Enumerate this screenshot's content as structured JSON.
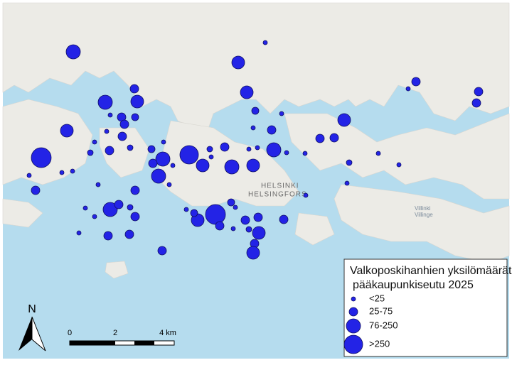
{
  "map": {
    "place_labels": [
      "HELSINKI",
      "HELSINGFORS",
      "Villinki",
      "Villinge"
    ],
    "legend": {
      "title_lines": [
        "Valkoposkihanhien yksilömäärät,",
        "pääkaupunkiseutu 2025"
      ],
      "items": [
        "<25",
        "25-75",
        "76-250",
        ">250"
      ]
    },
    "scale_bar": {
      "labels": [
        "0",
        "2",
        "4 km"
      ]
    },
    "north_arrow": "N"
  }
}
